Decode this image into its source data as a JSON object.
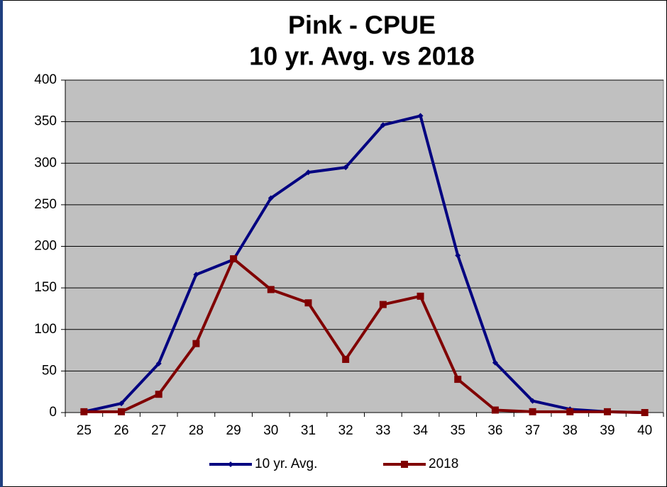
{
  "chart_data": {
    "type": "line",
    "title": "Pink - CPUE",
    "subtitle": "10 yr. Avg. vs 2018",
    "categories": [
      "25",
      "26",
      "27",
      "28",
      "29",
      "30",
      "31",
      "32",
      "33",
      "34",
      "35",
      "36",
      "37",
      "38",
      "39",
      "40"
    ],
    "series": [
      {
        "name": "10 yr. Avg.",
        "color": "#000080",
        "marker": "diamond",
        "values": [
          1,
          11,
          59,
          166,
          184,
          258,
          289,
          295,
          346,
          357,
          189,
          60,
          14,
          4,
          1,
          0
        ]
      },
      {
        "name": "2018",
        "color": "#800000",
        "marker": "square",
        "values": [
          1,
          1,
          22,
          83,
          185,
          148,
          132,
          64,
          130,
          140,
          40,
          3,
          1,
          1,
          1,
          0
        ]
      }
    ],
    "ylim": [
      0,
      400
    ],
    "yticks": [
      0,
      50,
      100,
      150,
      200,
      250,
      300,
      350,
      400
    ],
    "grid": true,
    "legend": "bottom"
  }
}
